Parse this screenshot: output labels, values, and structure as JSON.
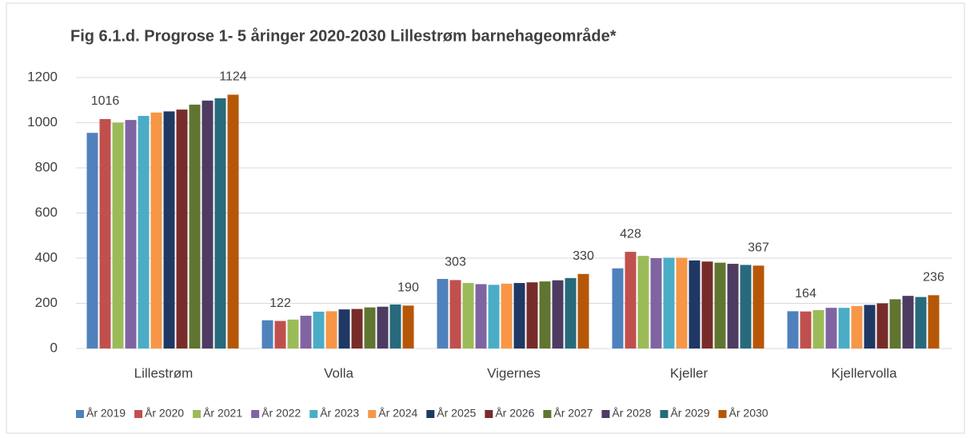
{
  "chart_data": {
    "type": "bar",
    "title": "Fig 6.1.d. Progrose 1- 5 åringer 2020-2030 Lillestrøm barnehageområde*",
    "categories": [
      "Lillestrøm",
      "Volla",
      "Vigernes",
      "Kjeller",
      "Kjellervolla"
    ],
    "series": [
      {
        "name": "År 2019",
        "color": "#4f81bd",
        "values": [
          955,
          125,
          308,
          355,
          165
        ]
      },
      {
        "name": "År 2020",
        "color": "#c0504d",
        "values": [
          1016,
          122,
          303,
          428,
          164
        ],
        "data_labels": true
      },
      {
        "name": "År 2021",
        "color": "#9bbb59",
        "values": [
          1000,
          128,
          290,
          410,
          170
        ]
      },
      {
        "name": "År 2022",
        "color": "#8064a2",
        "values": [
          1012,
          145,
          285,
          400,
          180
        ]
      },
      {
        "name": "År 2023",
        "color": "#4bacc6",
        "values": [
          1030,
          163,
          282,
          402,
          180
        ]
      },
      {
        "name": "År 2024",
        "color": "#f79646",
        "values": [
          1045,
          165,
          287,
          402,
          188
        ]
      },
      {
        "name": "År 2025",
        "color": "#1f3864",
        "values": [
          1050,
          173,
          290,
          390,
          193
        ]
      },
      {
        "name": "År 2026",
        "color": "#772c2a",
        "values": [
          1058,
          175,
          293,
          385,
          200
        ]
      },
      {
        "name": "År 2027",
        "color": "#5f7530",
        "values": [
          1080,
          182,
          297,
          380,
          218
        ]
      },
      {
        "name": "År 2028",
        "color": "#4d3b62",
        "values": [
          1098,
          185,
          302,
          375,
          233
        ]
      },
      {
        "name": "År 2029",
        "color": "#276a7c",
        "values": [
          1108,
          195,
          312,
          370,
          228
        ]
      },
      {
        "name": "År 2030",
        "color": "#b65708",
        "values": [
          1124,
          190,
          330,
          367,
          236
        ],
        "data_labels": true
      }
    ],
    "ylim": [
      0,
      1200
    ],
    "yticks": [
      0,
      200,
      400,
      600,
      800,
      1000,
      1200
    ],
    "grid": true,
    "legend": "bottom"
  }
}
